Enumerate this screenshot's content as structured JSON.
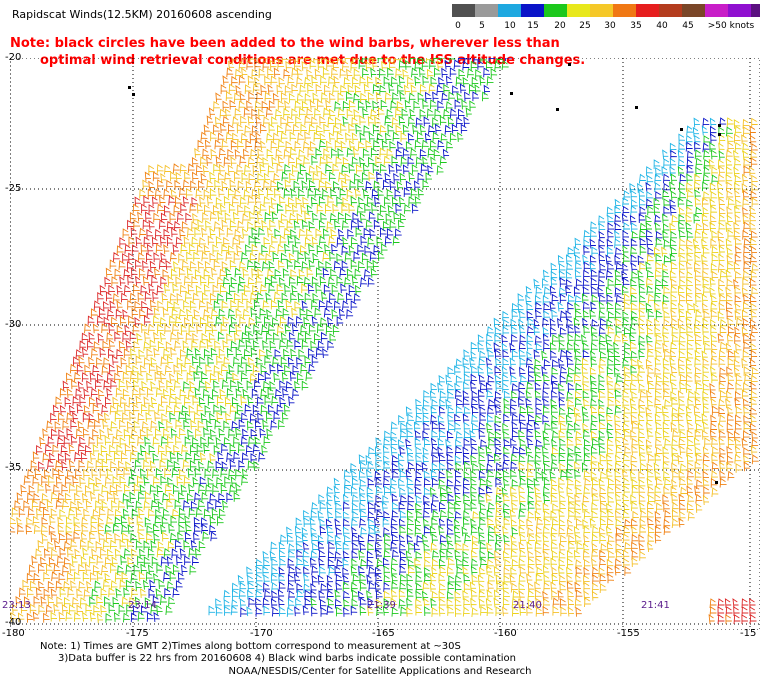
{
  "title": "Rapidscat Winds(12.5KM) 20160608 ascending",
  "legend": {
    "labels": [
      "0",
      "5",
      "10",
      "15",
      "20",
      "25",
      "30",
      "35",
      "40",
      "45",
      ">50 knots"
    ],
    "colors": [
      "#505050",
      "#9a9a9a",
      "#1ea8e0",
      "#0a14c8",
      "#1cc81c",
      "#e8e81c",
      "#f5c828",
      "#f07814",
      "#e61e1e",
      "#b43c1e",
      "#7a4628",
      "#c81ec8",
      "#9010d0",
      "#5a1080"
    ]
  },
  "note": {
    "line1": "Note: black circles have been added to the wind barbs, wherever less than",
    "line2": "optimal wind retrieval conditions are met due to the ISS altitude changes."
  },
  "map": {
    "lat_labels": [
      "-20",
      "-25",
      "-30",
      "-35",
      "-40"
    ],
    "lon_labels": [
      "-180",
      "-175",
      "-170",
      "-165",
      "-160",
      "-155",
      "-15"
    ],
    "time_labels": [
      "23:13",
      "23:14",
      "21:39",
      "21:40",
      "21:41"
    ]
  },
  "footnote": {
    "line1": "Note: 1) Times are GMT 2)Times along bottom correspond to measurement at ~30S",
    "line2": "3)Data buffer is 22 hrs from 20160608 4) Black wind barbs indicate possible contamination"
  },
  "credit": "NOAA/NESDIS/Center for Satellite Applications and Research"
}
